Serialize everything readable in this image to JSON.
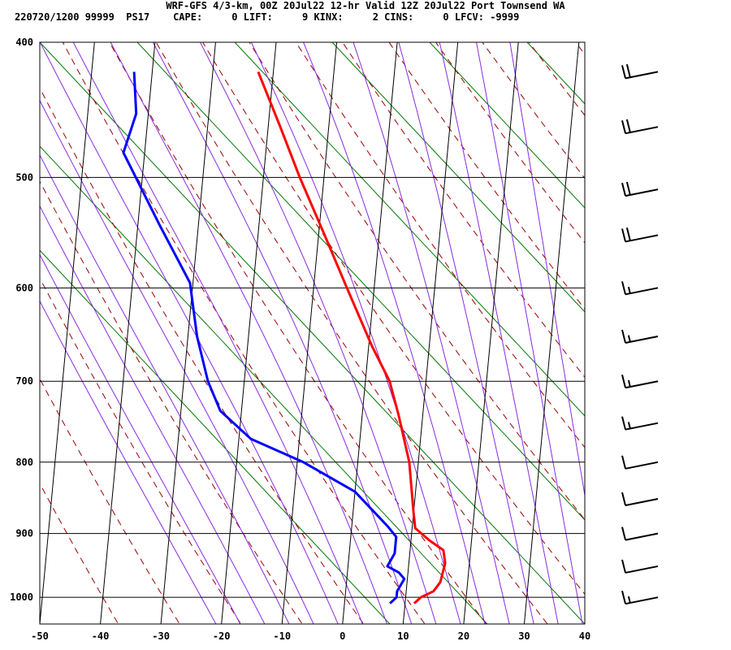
{
  "header": {
    "title": "WRF-GFS 4/3-km, 00Z 20Jul22 12-hr Valid 12Z 20Jul22 Port Townsend WA",
    "info": "220720/1200 99999  PS17    CAPE:     0 LIFT:     9 KINX:     2 CINS:     0 LFCV: -9999"
  },
  "colors": {
    "temperature": "#ff0000",
    "dewpoint": "#0000ff",
    "dry_adiabat": "#990000",
    "mixing_ratio": "#007700",
    "moist_adiabat": "#8a2be2",
    "grid": "#000000"
  },
  "chart_data": {
    "type": "line",
    "subtype": "skew-T log-P sounding",
    "xlim": [
      -50,
      40
    ],
    "ylim": [
      1045,
      400
    ],
    "y_log_scale": true,
    "x_ticks": [
      -50,
      -40,
      -30,
      -20,
      -10,
      0,
      10,
      20,
      30,
      40
    ],
    "y_ticks": [
      400,
      500,
      600,
      700,
      800,
      900,
      1000
    ],
    "grid": true,
    "series": [
      {
        "role": "temperature",
        "color": "#ff0000",
        "points": [
          {
            "p": 1010,
            "t": 11.5
          },
          {
            "p": 1000,
            "t": 12.5
          },
          {
            "p": 990,
            "t": 14.5
          },
          {
            "p": 975,
            "t": 15.5
          },
          {
            "p": 945,
            "t": 16.0
          },
          {
            "p": 925,
            "t": 15.5
          },
          {
            "p": 910,
            "t": 13.0
          },
          {
            "p": 892,
            "t": 10.5
          },
          {
            "p": 870,
            "t": 10.0
          },
          {
            "p": 800,
            "t": 8.5
          },
          {
            "p": 740,
            "t": 6.0
          },
          {
            "p": 700,
            "t": 4.0
          },
          {
            "p": 660,
            "t": 0.5
          },
          {
            "p": 600,
            "t": -4.5
          },
          {
            "p": 550,
            "t": -9.0
          },
          {
            "p": 500,
            "t": -14.0
          },
          {
            "p": 460,
            "t": -18.0
          },
          {
            "p": 420,
            "t": -22.5
          }
        ]
      },
      {
        "role": "dewpoint",
        "color": "#0000ff",
        "points": [
          {
            "p": 1010,
            "t": 7.5
          },
          {
            "p": 1000,
            "t": 8.5
          },
          {
            "p": 990,
            "t": 8.5
          },
          {
            "p": 970,
            "t": 9.5
          },
          {
            "p": 960,
            "t": 8.5
          },
          {
            "p": 950,
            "t": 6.5
          },
          {
            "p": 930,
            "t": 7.5
          },
          {
            "p": 905,
            "t": 7.5
          },
          {
            "p": 890,
            "t": 6.0
          },
          {
            "p": 840,
            "t": 0.0
          },
          {
            "p": 800,
            "t": -9.0
          },
          {
            "p": 770,
            "t": -18.0
          },
          {
            "p": 735,
            "t": -23.5
          },
          {
            "p": 700,
            "t": -26.0
          },
          {
            "p": 650,
            "t": -28.5
          },
          {
            "p": 595,
            "t": -30.5
          },
          {
            "p": 540,
            "t": -36.5
          },
          {
            "p": 480,
            "t": -43.5
          },
          {
            "p": 450,
            "t": -42.0
          },
          {
            "p": 420,
            "t": -43.0
          }
        ]
      }
    ],
    "wind_barbs": [
      {
        "p": 420,
        "spd": 20
      },
      {
        "p": 460,
        "spd": 20
      },
      {
        "p": 510,
        "spd": 20
      },
      {
        "p": 550,
        "spd": 20
      },
      {
        "p": 600,
        "spd": 15
      },
      {
        "p": 650,
        "spd": 15
      },
      {
        "p": 700,
        "spd": 15
      },
      {
        "p": 750,
        "spd": 15
      },
      {
        "p": 800,
        "spd": 10
      },
      {
        "p": 850,
        "spd": 10
      },
      {
        "p": 900,
        "spd": 10
      },
      {
        "p": 950,
        "spd": 10
      },
      {
        "p": 1000,
        "spd": 15
      }
    ]
  }
}
